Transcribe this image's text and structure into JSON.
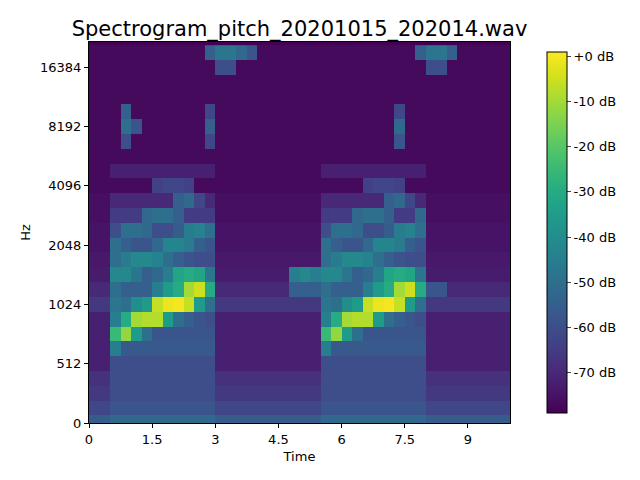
{
  "chart_data": {
    "type": "heatmap",
    "title": "Spectrogram_pitch_20201015_202014.wav",
    "xlabel": "Time",
    "ylabel": "Hz",
    "log": "y",
    "grid": false,
    "xlim": [
      0,
      10
    ],
    "xticks": [
      0,
      1.5,
      3,
      4.5,
      6,
      7.5,
      9
    ],
    "ylim": [
      0,
      22050
    ],
    "yticks": [
      0,
      512,
      1024,
      2048,
      4096,
      8192,
      16384
    ],
    "zlim": [
      -79,
      1
    ],
    "zticks": [
      {
        "value": 0,
        "label": "+0 dB"
      },
      {
        "value": -10,
        "label": "-10 dB"
      },
      {
        "value": -20,
        "label": "-20 dB"
      },
      {
        "value": -30,
        "label": "-30 dB"
      },
      {
        "value": -40,
        "label": "-40 dB"
      },
      {
        "value": -50,
        "label": "-50 dB"
      },
      {
        "value": -60,
        "label": "-60 dB"
      },
      {
        "value": -70,
        "label": "-70 dB"
      }
    ],
    "color": "Viridis",
    "x": [
      0.125,
      0.375,
      0.625,
      0.875,
      1.125,
      1.375,
      1.625,
      1.875,
      2.125,
      2.375,
      2.625,
      2.875,
      3.125,
      3.375,
      3.625,
      3.875,
      4.125,
      4.375,
      4.625,
      4.875,
      5.125,
      5.375,
      5.625,
      5.875,
      6.125,
      6.375,
      6.625,
      6.875,
      7.125,
      7.375,
      7.625,
      7.875,
      8.125,
      8.375,
      8.625,
      8.875,
      9.125,
      9.375,
      9.625,
      9.875
    ],
    "y": [
      0,
      128,
      256,
      384,
      512,
      609,
      724,
      861,
      1024,
      1218,
      1448,
      1722,
      2048,
      2435,
      2896,
      3444,
      4096,
      4871,
      5793,
      6889,
      8192,
      9742,
      11585,
      13777,
      16384,
      19484
    ],
    "z": [
      [
        -56,
        -56,
        -52,
        -52,
        -52,
        -52,
        -52,
        -52,
        -52,
        -52,
        -52,
        -52,
        -56,
        -56,
        -56,
        -56,
        -56,
        -56,
        -56,
        -56,
        -56,
        -56,
        -52,
        -52,
        -52,
        -52,
        -52,
        -52,
        -52,
        -52,
        -52,
        -52,
        -56,
        -56,
        -56,
        -56,
        -56,
        -56,
        -56,
        -56
      ],
      [
        -62,
        -62,
        -58,
        -58,
        -58,
        -58,
        -58,
        -58,
        -58,
        -58,
        -58,
        -58,
        -62,
        -62,
        -62,
        -62,
        -62,
        -62,
        -62,
        -62,
        -62,
        -62,
        -58,
        -58,
        -58,
        -58,
        -58,
        -58,
        -58,
        -58,
        -58,
        -58,
        -62,
        -62,
        -62,
        -62,
        -62,
        -62,
        -62,
        -62
      ],
      [
        -66,
        -66,
        -60,
        -60,
        -60,
        -60,
        -60,
        -60,
        -60,
        -60,
        -60,
        -60,
        -66,
        -66,
        -66,
        -66,
        -66,
        -66,
        -66,
        -66,
        -66,
        -66,
        -60,
        -60,
        -60,
        -60,
        -60,
        -60,
        -60,
        -60,
        -60,
        -60,
        -66,
        -66,
        -66,
        -66,
        -66,
        -66,
        -66,
        -66
      ],
      [
        -68,
        -68,
        -60,
        -60,
        -60,
        -60,
        -60,
        -60,
        -60,
        -60,
        -60,
        -60,
        -68,
        -68,
        -68,
        -68,
        -68,
        -68,
        -68,
        -68,
        -68,
        -68,
        -60,
        -60,
        -60,
        -60,
        -60,
        -60,
        -60,
        -60,
        -60,
        -60,
        -68,
        -68,
        -68,
        -68,
        -68,
        -68,
        -68,
        -68
      ],
      [
        -72,
        -72,
        -60,
        -60,
        -60,
        -60,
        -60,
        -60,
        -60,
        -60,
        -60,
        -60,
        -72,
        -72,
        -72,
        -72,
        -72,
        -72,
        -72,
        -72,
        -72,
        -72,
        -60,
        -60,
        -60,
        -60,
        -60,
        -60,
        -60,
        -60,
        -60,
        -60,
        -72,
        -72,
        -72,
        -72,
        -72,
        -72,
        -72,
        -72
      ],
      [
        -72,
        -72,
        -45,
        -57,
        -57,
        -57,
        -57,
        -57,
        -57,
        -57,
        -57,
        -57,
        -72,
        -72,
        -72,
        -72,
        -72,
        -72,
        -72,
        -72,
        -72,
        -72,
        -45,
        -57,
        -57,
        -57,
        -57,
        -57,
        -57,
        -57,
        -57,
        -57,
        -72,
        -72,
        -72,
        -72,
        -72,
        -72,
        -72,
        -72
      ],
      [
        -72,
        -72,
        -25,
        -12,
        -35,
        -50,
        -58,
        -58,
        -58,
        -58,
        -58,
        -58,
        -72,
        -72,
        -72,
        -72,
        -72,
        -72,
        -72,
        -72,
        -72,
        -72,
        -25,
        -12,
        -35,
        -50,
        -58,
        -58,
        -58,
        -58,
        -58,
        -58,
        -72,
        -72,
        -72,
        -72,
        -72,
        -72,
        -72,
        -72
      ],
      [
        -72,
        -72,
        -45,
        -30,
        -10,
        -8,
        -8,
        -35,
        -50,
        -55,
        -58,
        -60,
        -72,
        -72,
        -72,
        -72,
        -72,
        -72,
        -72,
        -72,
        -72,
        -72,
        -45,
        -30,
        -10,
        -8,
        -8,
        -35,
        -50,
        -55,
        -58,
        -60,
        -72,
        -72,
        -72,
        -72,
        -72,
        -72,
        -72,
        -72
      ],
      [
        -66,
        -66,
        -48,
        -50,
        -40,
        -35,
        -6,
        -1,
        0,
        -6,
        -35,
        -50,
        -66,
        -66,
        -66,
        -66,
        -66,
        -66,
        -66,
        -66,
        -66,
        -66,
        -48,
        -50,
        -40,
        -35,
        -6,
        -1,
        0,
        -6,
        -35,
        -50,
        -66,
        -66,
        -66,
        -66,
        -66,
        -66,
        -66,
        -66
      ],
      [
        -70,
        -70,
        -50,
        -55,
        -55,
        -55,
        -45,
        -35,
        -30,
        -10,
        -5,
        -30,
        -70,
        -70,
        -70,
        -70,
        -70,
        -70,
        -70,
        -55,
        -55,
        -55,
        -50,
        -55,
        -55,
        -55,
        -45,
        -35,
        -30,
        -10,
        -5,
        -30,
        -58,
        -58,
        -70,
        -70,
        -70,
        -70,
        -70,
        -70
      ],
      [
        -73,
        -73,
        -42,
        -42,
        -48,
        -55,
        -52,
        -45,
        -32,
        -30,
        -32,
        -48,
        -73,
        -73,
        -73,
        -73,
        -73,
        -73,
        -73,
        -45,
        -42,
        -45,
        -42,
        -42,
        -48,
        -55,
        -52,
        -45,
        -32,
        -30,
        -32,
        -48,
        -73,
        -73,
        -73,
        -73,
        -73,
        -73,
        -73,
        -73
      ],
      [
        -74,
        -74,
        -50,
        -46,
        -42,
        -42,
        -44,
        -50,
        -55,
        -58,
        -60,
        -60,
        -74,
        -74,
        -74,
        -74,
        -74,
        -74,
        -74,
        -74,
        -74,
        -74,
        -50,
        -46,
        -42,
        -42,
        -44,
        -50,
        -55,
        -58,
        -60,
        -60,
        -74,
        -74,
        -74,
        -74,
        -74,
        -74,
        -74,
        -74
      ],
      [
        -75,
        -75,
        -50,
        -55,
        -58,
        -58,
        -52,
        -43,
        -43,
        -46,
        -55,
        -58,
        -75,
        -75,
        -75,
        -75,
        -75,
        -75,
        -75,
        -75,
        -75,
        -75,
        -50,
        -55,
        -58,
        -58,
        -52,
        -43,
        -43,
        -46,
        -55,
        -58,
        -75,
        -75,
        -75,
        -75,
        -75,
        -75,
        -75,
        -75
      ],
      [
        -75,
        -75,
        -60,
        -50,
        -50,
        -52,
        -60,
        -60,
        -56,
        -46,
        -44,
        -50,
        -75,
        -75,
        -75,
        -75,
        -75,
        -75,
        -75,
        -75,
        -75,
        -75,
        -60,
        -50,
        -50,
        -52,
        -60,
        -60,
        -56,
        -46,
        -44,
        -50,
        -75,
        -75,
        -75,
        -75,
        -75,
        -75,
        -75,
        -75
      ],
      [
        -76,
        -76,
        -65,
        -65,
        -65,
        -52,
        -50,
        -50,
        -55,
        -65,
        -65,
        -65,
        -76,
        -76,
        -76,
        -76,
        -76,
        -76,
        -76,
        -76,
        -76,
        -76,
        -65,
        -65,
        -65,
        -52,
        -50,
        -50,
        -55,
        -65,
        -65,
        -52,
        -76,
        -76,
        -76,
        -76,
        -76,
        -76,
        -76,
        -76
      ],
      [
        -76,
        -76,
        -70,
        -70,
        -70,
        -70,
        -70,
        -70,
        -55,
        -52,
        -62,
        -70,
        -76,
        -76,
        -76,
        -76,
        -76,
        -76,
        -76,
        -76,
        -76,
        -76,
        -70,
        -70,
        -70,
        -70,
        -70,
        -70,
        -55,
        -52,
        -62,
        -70,
        -76,
        -76,
        -76,
        -76,
        -76,
        -76,
        -76,
        -76
      ],
      [
        -77,
        -77,
        -77,
        -77,
        -77,
        -77,
        -64,
        -62,
        -62,
        -64,
        -77,
        -77,
        -77,
        -77,
        -77,
        -77,
        -77,
        -77,
        -77,
        -77,
        -77,
        -77,
        -77,
        -77,
        -77,
        -77,
        -64,
        -62,
        -62,
        -64,
        -77,
        -77,
        -77,
        -77,
        -77,
        -77,
        -77,
        -77,
        -77,
        -77
      ],
      [
        -77,
        -77,
        -72,
        -72,
        -72,
        -72,
        -72,
        -72,
        -72,
        -72,
        -72,
        -72,
        -77,
        -77,
        -77,
        -77,
        -77,
        -77,
        -77,
        -77,
        -77,
        -77,
        -72,
        -72,
        -72,
        -72,
        -72,
        -72,
        -72,
        -72,
        -72,
        -72,
        -77,
        -77,
        -77,
        -77,
        -77,
        -77,
        -77,
        -77
      ],
      [
        -77,
        -77,
        -77,
        -77,
        -77,
        -77,
        -77,
        -77,
        -77,
        -77,
        -77,
        -77,
        -77,
        -77,
        -77,
        -77,
        -77,
        -77,
        -77,
        -77,
        -77,
        -77,
        -77,
        -77,
        -77,
        -77,
        -77,
        -77,
        -77,
        -77,
        -77,
        -77,
        -77,
        -77,
        -77,
        -77,
        -77,
        -77,
        -77,
        -77
      ],
      [
        -77,
        -77,
        -77,
        -60,
        -77,
        -77,
        -77,
        -77,
        -77,
        -77,
        -77,
        -62,
        -77,
        -77,
        -77,
        -77,
        -77,
        -77,
        -77,
        -77,
        -77,
        -77,
        -77,
        -77,
        -77,
        -77,
        -77,
        -77,
        -77,
        -58,
        -77,
        -77,
        -77,
        -77,
        -77,
        -77,
        -77,
        -77,
        -77,
        -77
      ],
      [
        -77,
        -77,
        -77,
        -50,
        -58,
        -77,
        -77,
        -77,
        -77,
        -77,
        -77,
        -55,
        -77,
        -77,
        -77,
        -77,
        -77,
        -77,
        -77,
        -77,
        -77,
        -77,
        -77,
        -77,
        -77,
        -77,
        -77,
        -77,
        -77,
        -52,
        -77,
        -77,
        -77,
        -77,
        -77,
        -77,
        -77,
        -77,
        -77,
        -77
      ],
      [
        -77,
        -77,
        -77,
        -55,
        -77,
        -77,
        -77,
        -77,
        -77,
        -77,
        -77,
        -62,
        -77,
        -77,
        -77,
        -77,
        -77,
        -77,
        -77,
        -77,
        -77,
        -77,
        -77,
        -77,
        -77,
        -77,
        -77,
        -77,
        -77,
        -62,
        -77,
        -77,
        -77,
        -77,
        -77,
        -77,
        -77,
        -77,
        -77,
        -77
      ],
      [
        -77,
        -77,
        -77,
        -77,
        -77,
        -77,
        -77,
        -77,
        -77,
        -77,
        -77,
        -77,
        -77,
        -77,
        -77,
        -77,
        -77,
        -77,
        -77,
        -77,
        -77,
        -77,
        -77,
        -77,
        -77,
        -77,
        -77,
        -77,
        -77,
        -77,
        -77,
        -77,
        -77,
        -77,
        -77,
        -77,
        -77,
        -77,
        -77,
        -77
      ],
      [
        -77,
        -77,
        -77,
        -77,
        -77,
        -77,
        -77,
        -77,
        -77,
        -77,
        -77,
        -77,
        -77,
        -77,
        -77,
        -77,
        -77,
        -77,
        -77,
        -77,
        -77,
        -77,
        -77,
        -77,
        -77,
        -77,
        -77,
        -77,
        -77,
        -77,
        -77,
        -77,
        -77,
        -77,
        -77,
        -77,
        -77,
        -77,
        -77,
        -77
      ],
      [
        -77,
        -77,
        -77,
        -77,
        -77,
        -77,
        -77,
        -77,
        -77,
        -77,
        -77,
        -77,
        -60,
        -60,
        -77,
        -77,
        -77,
        -77,
        -77,
        -77,
        -77,
        -77,
        -77,
        -77,
        -77,
        -77,
        -77,
        -77,
        -77,
        -77,
        -77,
        -77,
        -60,
        -60,
        -77,
        -77,
        -77,
        -77,
        -77,
        -77
      ],
      [
        -77,
        -77,
        -77,
        -77,
        -77,
        -77,
        -77,
        -77,
        -77,
        -77,
        -77,
        -55,
        -48,
        -48,
        -52,
        -58,
        -77,
        -77,
        -77,
        -77,
        -77,
        -77,
        -77,
        -77,
        -77,
        -77,
        -77,
        -77,
        -77,
        -77,
        -77,
        -55,
        -48,
        -48,
        -55,
        -77,
        -77,
        -77,
        -77,
        -77
      ]
    ]
  }
}
